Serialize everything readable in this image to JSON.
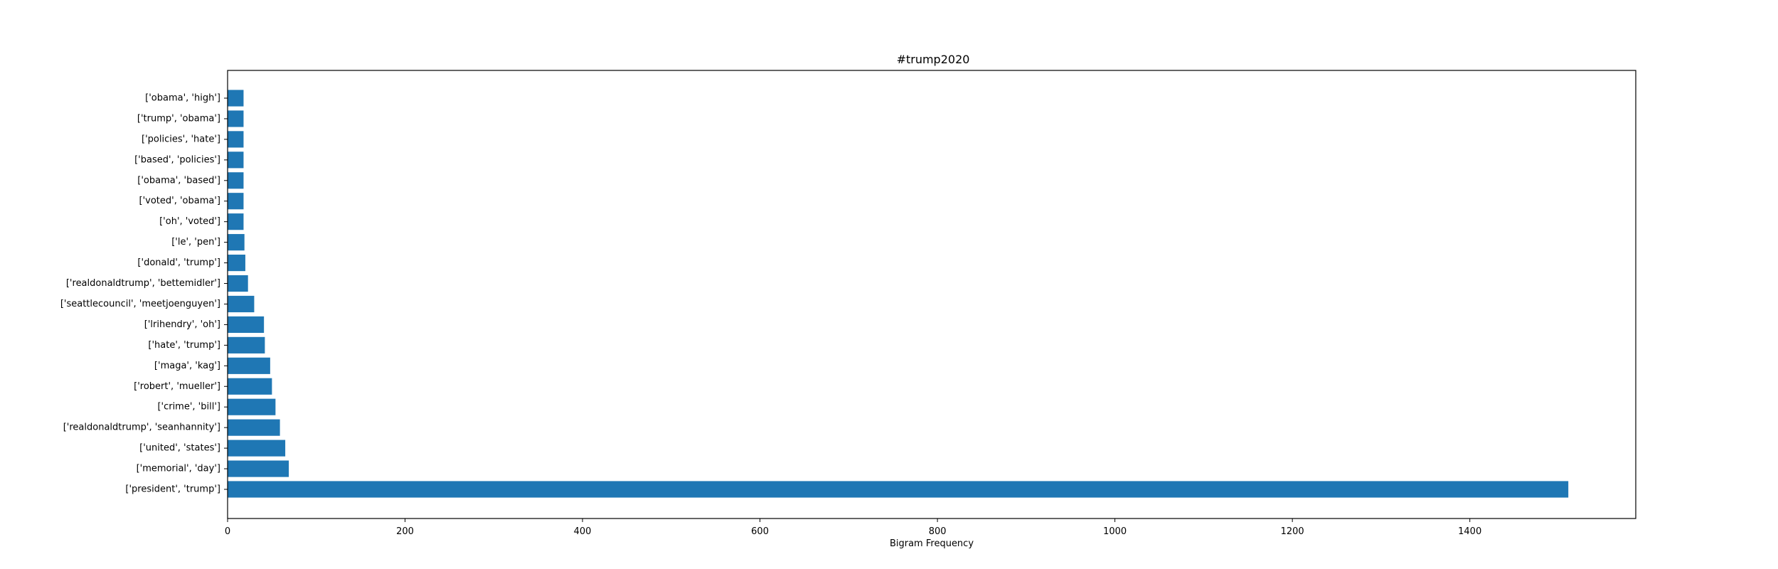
{
  "chart_data": {
    "type": "bar",
    "orientation": "horizontal",
    "title": "#trump2020",
    "xlabel": "Bigram Frequency",
    "ylabel": "",
    "categories": [
      "['president', 'trump']",
      "['memorial', 'day']",
      "['united', 'states']",
      "['realdonaldtrump', 'seanhannity']",
      "['crime', 'bill']",
      "['robert', 'mueller']",
      "['maga', 'kag']",
      "['hate', 'trump']",
      "['lrihendry', 'oh']",
      "['seattlecouncil', 'meetjoenguyen']",
      "['realdonaldtrump', 'bettemidler']",
      "['donald', 'trump']",
      "['le', 'pen']",
      "['oh', 'voted']",
      "['voted', 'obama']",
      "['obama', 'based']",
      "['based', 'policies']",
      "['policies', 'hate']",
      "['trump', 'obama']",
      "['obama', 'high']"
    ],
    "values": [
      1511,
      69,
      65,
      59,
      54,
      50,
      48,
      42,
      41,
      30,
      23,
      20,
      19,
      18,
      18,
      18,
      18,
      18,
      18,
      18
    ],
    "xlim": [
      0,
      1587
    ],
    "xticks": [
      0,
      200,
      400,
      600,
      800,
      1000,
      1200,
      1400
    ],
    "bar_color": "#1f77b4",
    "grid": false,
    "legend": "none"
  }
}
